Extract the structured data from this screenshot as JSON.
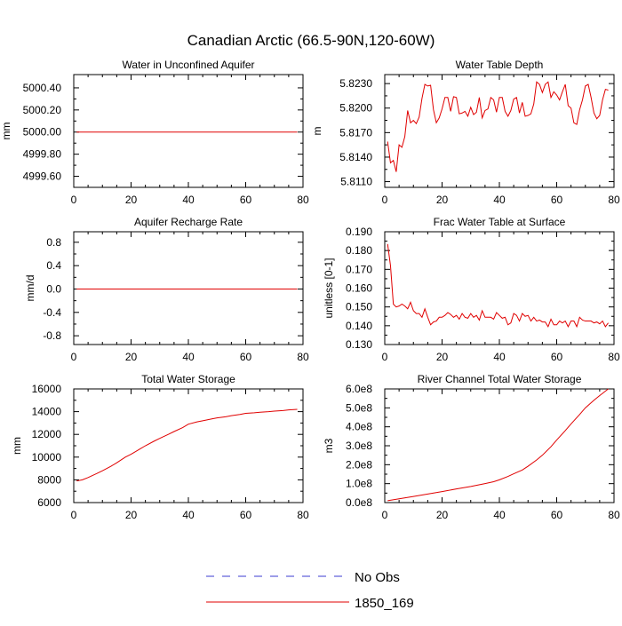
{
  "figure": {
    "title": "Canadian Arctic (66.5-90N,120-60W)"
  },
  "legend": {
    "entries": [
      {
        "label": "No Obs",
        "color": "#3b3bd0",
        "style": "dashed"
      },
      {
        "label": "1850_169",
        "color": "#e00000",
        "style": "solid"
      }
    ]
  },
  "chart_data": [
    {
      "type": "line",
      "title": "Water in Unconfined Aquifer",
      "ylabel": "mm",
      "xlim": [
        0,
        80
      ],
      "ylim": [
        4999.5,
        5000.52
      ],
      "xticks": [
        0,
        20,
        40,
        60,
        80
      ],
      "xtick_labels": [
        "0",
        "20",
        "40",
        "60",
        "80"
      ],
      "yticks": [
        4999.6,
        4999.8,
        5000.0,
        5000.2,
        5000.4
      ],
      "ytick_labels": [
        "4999.60",
        "4999.80",
        "5000.00",
        "5000.20",
        "5000.40"
      ],
      "series": [
        {
          "name": "1850_169",
          "color": "#e00000",
          "x": [
            1,
            78
          ],
          "values": [
            5000.0,
            5000.0
          ]
        }
      ]
    },
    {
      "type": "line",
      "title": "Water Table Depth",
      "ylabel": "m",
      "xlim": [
        0,
        80
      ],
      "ylim": [
        5.8103,
        5.8241
      ],
      "xticks": [
        0,
        20,
        40,
        60,
        80
      ],
      "xtick_labels": [
        "0",
        "20",
        "40",
        "60",
        "80"
      ],
      "yticks": [
        5.811,
        5.814,
        5.817,
        5.82,
        5.823
      ],
      "ytick_labels": [
        "5.8110",
        "5.8140",
        "5.8170",
        "5.8200",
        "5.8230"
      ],
      "series": [
        {
          "name": "1850_169",
          "color": "#e00000",
          "x": [
            1,
            2,
            3,
            4,
            5,
            6,
            7,
            8,
            9,
            10,
            11,
            12,
            13,
            14,
            15,
            16,
            17,
            18,
            19,
            20,
            21,
            22,
            23,
            24,
            25,
            26,
            27,
            28,
            29,
            30,
            31,
            32,
            33,
            34,
            35,
            36,
            37,
            38,
            39,
            40,
            41,
            42,
            43,
            44,
            45,
            46,
            47,
            48,
            49,
            50,
            51,
            52,
            53,
            54,
            55,
            56,
            57,
            58,
            59,
            60,
            61,
            62,
            63,
            64,
            65,
            66,
            67,
            68,
            69,
            70,
            71,
            72,
            73,
            74,
            75,
            76,
            77,
            78
          ],
          "values": [
            5.8159,
            5.8133,
            5.8136,
            5.8122,
            5.8155,
            5.8152,
            5.8165,
            5.8197,
            5.8182,
            5.8185,
            5.8181,
            5.8189,
            5.8212,
            5.8229,
            5.8227,
            5.8228,
            5.8198,
            5.8182,
            5.8188,
            5.8199,
            5.8213,
            5.8213,
            5.8196,
            5.8214,
            5.8213,
            5.8193,
            5.8194,
            5.8196,
            5.819,
            5.8201,
            5.8192,
            5.8195,
            5.8213,
            5.8188,
            5.8197,
            5.8199,
            5.8213,
            5.821,
            5.8195,
            5.8213,
            5.8213,
            5.8196,
            5.819,
            5.8197,
            5.8211,
            5.8213,
            5.8194,
            5.8207,
            5.819,
            5.8191,
            5.8193,
            5.8205,
            5.8232,
            5.8229,
            5.8219,
            5.8229,
            5.8232,
            5.8213,
            5.822,
            5.8216,
            5.821,
            5.822,
            5.8229,
            5.8203,
            5.82,
            5.8182,
            5.818,
            5.8198,
            5.821,
            5.8227,
            5.8229,
            5.8213,
            5.8194,
            5.8187,
            5.8191,
            5.821,
            5.8223,
            5.8222
          ]
        }
      ]
    },
    {
      "type": "line",
      "title": "Aquifer Recharge Rate",
      "ylabel": "mm/d",
      "xlim": [
        0,
        80
      ],
      "ylim": [
        -0.95,
        0.98
      ],
      "xticks": [
        0,
        20,
        40,
        60,
        80
      ],
      "xtick_labels": [
        "0",
        "20",
        "40",
        "60",
        "80"
      ],
      "yticks": [
        -0.8,
        -0.4,
        0.0,
        0.4,
        0.8
      ],
      "ytick_labels": [
        "-0.8",
        "-0.4",
        "0.0",
        "0.4",
        "0.8"
      ],
      "series": [
        {
          "name": "1850_169",
          "color": "#e00000",
          "x": [
            1,
            78
          ],
          "values": [
            0.0,
            0.0
          ]
        }
      ]
    },
    {
      "type": "line",
      "title": "Frac Water Table at Surface",
      "ylabel": "unitless [0-1]",
      "xlim": [
        0,
        80
      ],
      "ylim": [
        0.13,
        0.19
      ],
      "xticks": [
        0,
        20,
        40,
        60,
        80
      ],
      "xtick_labels": [
        "0",
        "20",
        "40",
        "60",
        "80"
      ],
      "yticks": [
        0.13,
        0.14,
        0.15,
        0.16,
        0.17,
        0.18,
        0.19
      ],
      "ytick_labels": [
        "0.130",
        "0.140",
        "0.150",
        "0.160",
        "0.170",
        "0.180",
        "0.190"
      ],
      "series": [
        {
          "name": "1850_169",
          "color": "#e00000",
          "x": [
            1,
            2,
            3,
            4,
            5,
            6,
            7,
            8,
            9,
            10,
            11,
            12,
            13,
            14,
            15,
            16,
            17,
            18,
            19,
            20,
            21,
            22,
            23,
            24,
            25,
            26,
            27,
            28,
            29,
            30,
            31,
            32,
            33,
            34,
            35,
            36,
            37,
            38,
            39,
            40,
            41,
            42,
            43,
            44,
            45,
            46,
            47,
            48,
            49,
            50,
            51,
            52,
            53,
            54,
            55,
            56,
            57,
            58,
            59,
            60,
            61,
            62,
            63,
            64,
            65,
            66,
            67,
            68,
            69,
            70,
            71,
            72,
            73,
            74,
            75,
            76,
            77,
            78
          ],
          "values": [
            0.1835,
            0.172,
            0.1515,
            0.15,
            0.1505,
            0.1515,
            0.1505,
            0.149,
            0.1525,
            0.148,
            0.1465,
            0.1465,
            0.1445,
            0.149,
            0.1445,
            0.1405,
            0.142,
            0.1425,
            0.1445,
            0.1445,
            0.1455,
            0.147,
            0.146,
            0.1445,
            0.1455,
            0.1435,
            0.1465,
            0.1445,
            0.144,
            0.1465,
            0.1445,
            0.1455,
            0.143,
            0.148,
            0.1445,
            0.1445,
            0.1445,
            0.1435,
            0.147,
            0.1455,
            0.144,
            0.1445,
            0.1405,
            0.1415,
            0.1465,
            0.1455,
            0.1425,
            0.1465,
            0.145,
            0.1455,
            0.1425,
            0.1445,
            0.1425,
            0.143,
            0.142,
            0.142,
            0.1395,
            0.1435,
            0.1405,
            0.1405,
            0.1425,
            0.1415,
            0.1425,
            0.1395,
            0.1425,
            0.1425,
            0.1395,
            0.1445,
            0.143,
            0.1425,
            0.1425,
            0.1425,
            0.1415,
            0.142,
            0.141,
            0.1425,
            0.1395,
            0.1415
          ]
        }
      ]
    },
    {
      "type": "line",
      "title": "Total Water Storage",
      "ylabel": "mm",
      "xlim": [
        0,
        80
      ],
      "ylim": [
        6000,
        16000
      ],
      "xticks": [
        0,
        20,
        40,
        60,
        80
      ],
      "xtick_labels": [
        "0",
        "20",
        "40",
        "60",
        "80"
      ],
      "yticks": [
        6000,
        8000,
        10000,
        12000,
        14000,
        16000
      ],
      "ytick_labels": [
        "6000",
        "8000",
        "10000",
        "12000",
        "14000",
        "16000"
      ],
      "series": [
        {
          "name": "1850_169",
          "color": "#e00000",
          "x": [
            1,
            3,
            5,
            8,
            10,
            13,
            15,
            18,
            20,
            23,
            25,
            28,
            30,
            33,
            35,
            38,
            40,
            43,
            45,
            48,
            50,
            53,
            55,
            58,
            60,
            63,
            65,
            68,
            70,
            73,
            75,
            78
          ],
          "values": [
            7900,
            8000,
            8200,
            8550,
            8800,
            9200,
            9500,
            10000,
            10250,
            10700,
            11000,
            11400,
            11650,
            12000,
            12250,
            12600,
            12900,
            13100,
            13200,
            13350,
            13450,
            13550,
            13650,
            13750,
            13850,
            13900,
            13950,
            14000,
            14050,
            14100,
            14150,
            14200
          ]
        }
      ]
    },
    {
      "type": "line",
      "title": "River Channel Total Water Storage",
      "ylabel": "m3",
      "xlim": [
        0,
        80
      ],
      "ylim": [
        0,
        600000000
      ],
      "xticks": [
        0,
        20,
        40,
        60,
        80
      ],
      "xtick_labels": [
        "0",
        "20",
        "40",
        "60",
        "80"
      ],
      "yticks": [
        0,
        100000000,
        200000000,
        300000000,
        400000000,
        500000000,
        600000000
      ],
      "ytick_labels": [
        "0.0e8",
        "1.0e8",
        "2.0e8",
        "3.0e8",
        "4.0e8",
        "5.0e8",
        "6.0e8"
      ],
      "series": [
        {
          "name": "1850_169",
          "color": "#e00000",
          "x": [
            1,
            5,
            10,
            15,
            20,
            25,
            30,
            35,
            38,
            40,
            43,
            45,
            48,
            50,
            53,
            55,
            58,
            60,
            63,
            65,
            68,
            70,
            73,
            75,
            78
          ],
          "values": [
            10000000,
            20000000,
            32000000,
            45000000,
            58000000,
            72000000,
            85000000,
            100000000,
            110000000,
            120000000,
            138000000,
            152000000,
            172000000,
            192000000,
            225000000,
            250000000,
            295000000,
            330000000,
            380000000,
            415000000,
            465000000,
            500000000,
            540000000,
            565000000,
            600000000
          ]
        }
      ]
    }
  ]
}
